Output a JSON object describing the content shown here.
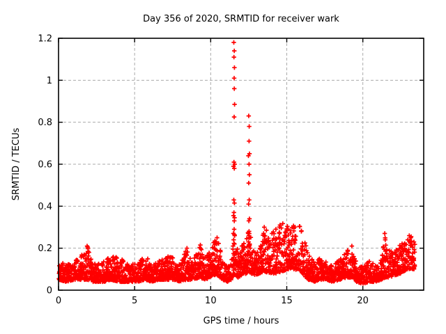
{
  "window": {
    "background": "#ffffff"
  },
  "chart_data": {
    "type": "scatter",
    "title": "Day 356 of 2020, SRMTID for receiver wark",
    "xlabel": "GPS time / hours",
    "ylabel": "SRMTID / TECUs",
    "xlim": [
      0,
      24
    ],
    "ylim": [
      0,
      1.2
    ],
    "xticks": [
      0,
      5,
      10,
      15,
      20
    ],
    "xtick_labels": [
      "0",
      "5",
      "10",
      "15",
      "20"
    ],
    "yticks": [
      0,
      0.2,
      0.4,
      0.6,
      0.8,
      1,
      1.2
    ],
    "ytick_labels": [
      "0",
      "0.2",
      "0.4",
      "0.6",
      "0.8",
      "1",
      "1.2"
    ],
    "grid": "dashed lines at major ticks, both axes",
    "legend": "none",
    "marker": "plus",
    "marker_color": "#ff0000",
    "axis_color": "#000000",
    "grid_color": "#aaaaaa",
    "text_color": "#000000",
    "series_description": "SRMTID scatter vs GPS time: dense baseline 0.05-0.2 TECUs all day; dip near 11h; narrow spike column at ~11.55h reaching 1.18; second spike column at ~12.5h reaching 0.83; broad elevated cluster 0.1-0.33 between 13.5h and 16h; smaller bumps near 1.9h, 8.4h, 9.3h, 10.4h, 19.3h, 21.45h and rising to ~0.26 at day end ~23.3h",
    "baseline_profile_columns": [
      "hour",
      "typical_low",
      "typical_high"
    ],
    "baseline_profile": [
      [
        0.0,
        0.05,
        0.14
      ],
      [
        0.5,
        0.04,
        0.12
      ],
      [
        1.0,
        0.05,
        0.13
      ],
      [
        1.6,
        0.05,
        0.18
      ],
      [
        1.9,
        0.05,
        0.21
      ],
      [
        2.2,
        0.04,
        0.13
      ],
      [
        3.0,
        0.04,
        0.14
      ],
      [
        3.4,
        0.05,
        0.16
      ],
      [
        4.0,
        0.04,
        0.16
      ],
      [
        4.6,
        0.04,
        0.12
      ],
      [
        5.2,
        0.04,
        0.13
      ],
      [
        5.7,
        0.05,
        0.17
      ],
      [
        6.1,
        0.04,
        0.12
      ],
      [
        6.6,
        0.05,
        0.14
      ],
      [
        7.2,
        0.05,
        0.17
      ],
      [
        7.6,
        0.05,
        0.15
      ],
      [
        8.0,
        0.04,
        0.12
      ],
      [
        8.4,
        0.05,
        0.2
      ],
      [
        8.8,
        0.05,
        0.13
      ],
      [
        9.3,
        0.06,
        0.22
      ],
      [
        9.7,
        0.05,
        0.16
      ],
      [
        10.1,
        0.07,
        0.22
      ],
      [
        10.45,
        0.07,
        0.25
      ],
      [
        10.8,
        0.05,
        0.14
      ],
      [
        11.1,
        0.04,
        0.11
      ],
      [
        11.35,
        0.05,
        0.13
      ],
      [
        11.5,
        0.07,
        0.3
      ],
      [
        11.65,
        0.07,
        0.28
      ],
      [
        11.8,
        0.06,
        0.18
      ],
      [
        12.1,
        0.07,
        0.22
      ],
      [
        12.35,
        0.08,
        0.25
      ],
      [
        12.5,
        0.09,
        0.3
      ],
      [
        12.65,
        0.08,
        0.26
      ],
      [
        12.9,
        0.07,
        0.18
      ],
      [
        13.2,
        0.08,
        0.2
      ],
      [
        13.5,
        0.09,
        0.3
      ],
      [
        13.9,
        0.08,
        0.27
      ],
      [
        14.3,
        0.08,
        0.3
      ],
      [
        14.7,
        0.09,
        0.33
      ],
      [
        15.1,
        0.1,
        0.33
      ],
      [
        15.5,
        0.1,
        0.31
      ],
      [
        15.9,
        0.09,
        0.31
      ],
      [
        16.15,
        0.07,
        0.25
      ],
      [
        16.4,
        0.05,
        0.17
      ],
      [
        16.8,
        0.04,
        0.14
      ],
      [
        17.2,
        0.05,
        0.16
      ],
      [
        17.6,
        0.05,
        0.14
      ],
      [
        18.0,
        0.04,
        0.12
      ],
      [
        18.5,
        0.05,
        0.15
      ],
      [
        18.9,
        0.06,
        0.18
      ],
      [
        19.2,
        0.06,
        0.21
      ],
      [
        19.6,
        0.04,
        0.13
      ],
      [
        20.0,
        0.03,
        0.11
      ],
      [
        20.4,
        0.04,
        0.14
      ],
      [
        20.8,
        0.04,
        0.12
      ],
      [
        21.2,
        0.05,
        0.15
      ],
      [
        21.45,
        0.06,
        0.26
      ],
      [
        21.7,
        0.06,
        0.19
      ],
      [
        22.1,
        0.07,
        0.19
      ],
      [
        22.5,
        0.08,
        0.22
      ],
      [
        22.9,
        0.1,
        0.24
      ],
      [
        23.2,
        0.1,
        0.26
      ],
      [
        23.35,
        0.1,
        0.24
      ]
    ],
    "spike_points_columns": [
      "hour",
      "srmtid_tecus"
    ],
    "spike_points": [
      [
        11.47,
        0.21
      ],
      [
        11.49,
        0.27
      ],
      [
        11.5,
        0.355
      ],
      [
        11.5,
        0.59
      ],
      [
        11.51,
        0.24
      ],
      [
        11.52,
        0.43
      ],
      [
        11.52,
        1.18
      ],
      [
        11.53,
        0.37
      ],
      [
        11.53,
        0.61
      ],
      [
        11.53,
        1.11
      ],
      [
        11.54,
        0.29
      ],
      [
        11.54,
        0.825
      ],
      [
        11.54,
        1.01
      ],
      [
        11.55,
        0.33
      ],
      [
        11.55,
        0.58
      ],
      [
        11.55,
        0.96
      ],
      [
        11.55,
        1.14
      ],
      [
        11.56,
        0.22
      ],
      [
        11.56,
        0.415
      ],
      [
        11.56,
        1.06
      ],
      [
        11.57,
        0.345
      ],
      [
        11.57,
        0.885
      ],
      [
        11.58,
        0.26
      ],
      [
        11.58,
        0.6
      ],
      [
        12.05,
        0.21
      ],
      [
        12.08,
        0.19
      ],
      [
        12.47,
        0.27
      ],
      [
        12.48,
        0.64
      ],
      [
        12.49,
        0.23
      ],
      [
        12.49,
        0.41
      ],
      [
        12.5,
        0.51
      ],
      [
        12.5,
        0.83
      ],
      [
        12.51,
        0.33
      ],
      [
        12.52,
        0.28
      ],
      [
        12.52,
        0.6
      ],
      [
        12.52,
        0.71
      ],
      [
        12.53,
        0.43
      ],
      [
        12.53,
        0.78
      ],
      [
        12.54,
        0.55
      ],
      [
        12.55,
        0.25
      ],
      [
        12.55,
        0.34
      ],
      [
        12.55,
        0.65
      ],
      [
        12.56,
        0.22
      ],
      [
        1.88,
        0.21
      ],
      [
        1.92,
        0.205
      ],
      [
        8.44,
        0.2
      ],
      [
        9.32,
        0.215
      ],
      [
        10.35,
        0.23
      ],
      [
        10.42,
        0.25
      ],
      [
        13.48,
        0.27
      ],
      [
        13.52,
        0.3
      ],
      [
        14.52,
        0.27
      ],
      [
        19.28,
        0.21
      ],
      [
        21.44,
        0.27
      ],
      [
        21.47,
        0.24
      ],
      [
        22.95,
        0.24
      ],
      [
        23.05,
        0.26
      ],
      [
        23.15,
        0.25
      ]
    ],
    "render": {
      "seed": 20200356,
      "step_hours": 0.05,
      "min_pts_per_step": 4,
      "extra_pts_per_step": 3,
      "bias_exponent": 1.8,
      "x_start": 0.02,
      "x_end": 23.38
    }
  }
}
